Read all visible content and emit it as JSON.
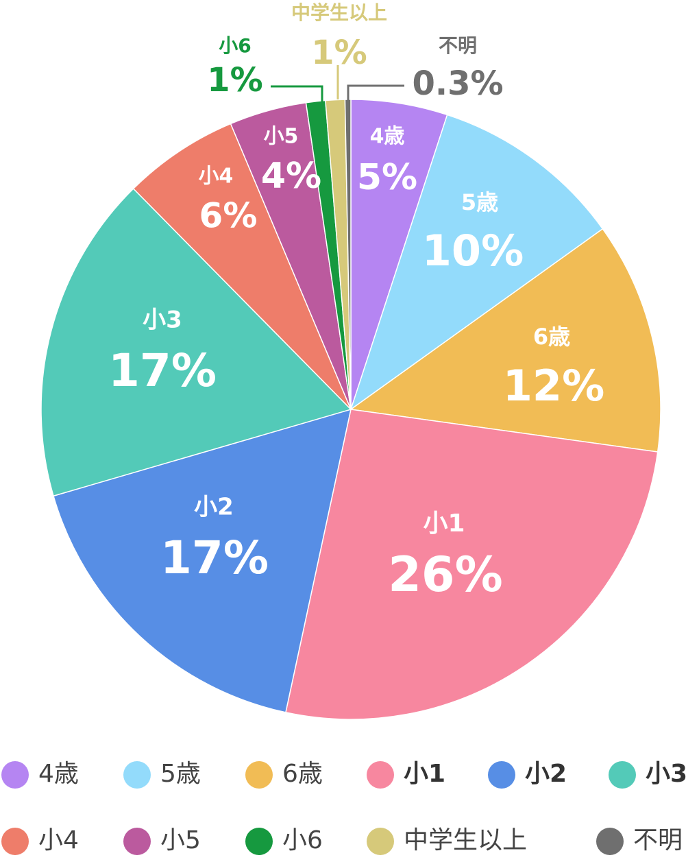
{
  "chart_data": {
    "type": "pie",
    "categories": [
      "4歳",
      "5歳",
      "6歳",
      "小1",
      "小2",
      "小3",
      "小4",
      "小5",
      "小6",
      "中学生以上",
      "不明"
    ],
    "values": [
      5,
      10,
      12,
      26,
      17,
      17,
      6,
      4,
      1,
      1,
      0.3
    ],
    "value_labels": [
      "5%",
      "10%",
      "12%",
      "26%",
      "17%",
      "17%",
      "6%",
      "4%",
      "1%",
      "1%",
      "0.3%"
    ],
    "colors": [
      "#b585f2",
      "#93dbfb",
      "#f1bc55",
      "#f7879f",
      "#578ee5",
      "#53cab8",
      "#ee7d6a",
      "#bb5a9e",
      "#16993f",
      "#d6c97a",
      "#6f6f6f"
    ],
    "legend": "bottom"
  }
}
